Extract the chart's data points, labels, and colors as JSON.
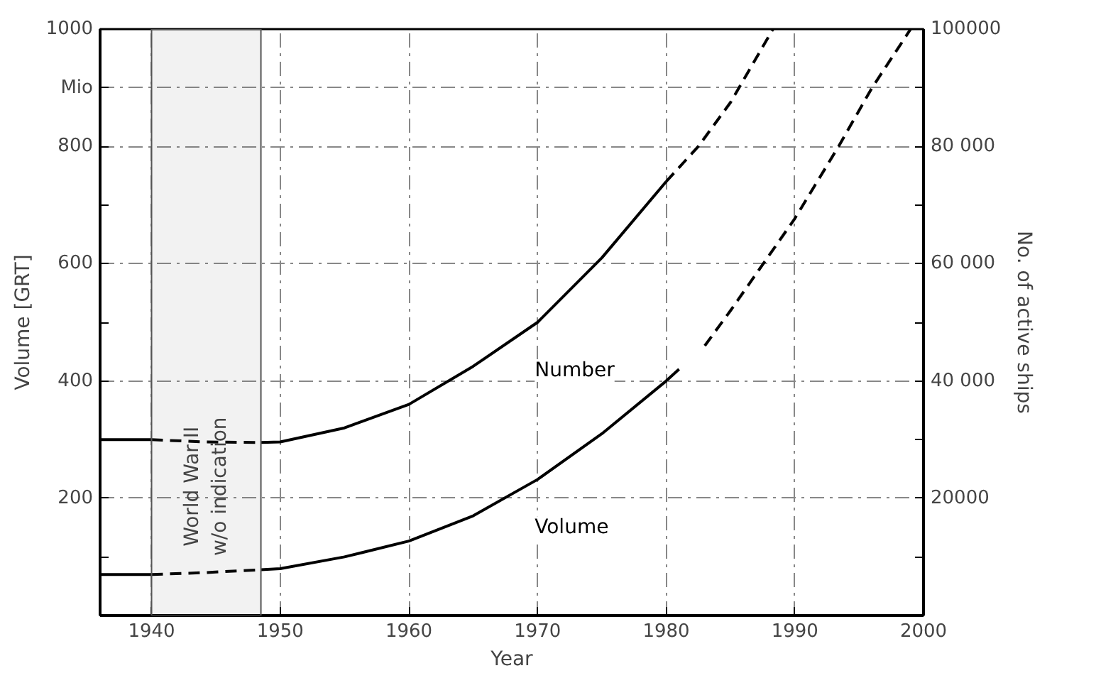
{
  "chart_data": {
    "type": "line",
    "xlabel": "Year",
    "ylabel": "Volume [GRT]",
    "y2label": "No. of active ships",
    "xlim": [
      1936,
      2000
    ],
    "xticks": [
      1940,
      1950,
      1960,
      1970,
      1980,
      1990,
      2000
    ],
    "ylim": [
      0,
      1000
    ],
    "yticks": [
      {
        "value": 100,
        "label": null
      },
      200,
      {
        "value": 300,
        "label": null
      },
      400,
      {
        "value": 500,
        "label": null
      },
      600,
      {
        "value": 700,
        "label": null
      },
      800,
      {
        "value": 900,
        "label": "Mio"
      },
      1000
    ],
    "y2lim": [
      0,
      100000
    ],
    "y2ticks": [
      {
        "value": 10000,
        "label": null
      },
      {
        "value": 20000,
        "label": "20000"
      },
      {
        "value": 30000,
        "label": null
      },
      {
        "value": 40000,
        "label": "40 000"
      },
      {
        "value": 50000,
        "label": null
      },
      {
        "value": 60000,
        "label": "60 000"
      },
      {
        "value": 70000,
        "label": null
      },
      {
        "value": 80000,
        "label": "80 000"
      },
      {
        "value": 90000,
        "label": null
      },
      {
        "value": 100000,
        "label": "100000"
      }
    ],
    "grid": true,
    "marker": "none",
    "bands": [
      {
        "axis": "x",
        "from": 1940,
        "to": 1948.5,
        "label": "World War II\nw/o indication",
        "color": "#555555"
      }
    ],
    "series": [
      {
        "color": "#000000",
        "axis": "y2",
        "line_style": "solid",
        "x": [
          1936,
          1940
        ],
        "values": [
          30000,
          30000
        ]
      },
      {
        "color": "#000000",
        "axis": "y2",
        "line_style": "dashed",
        "x": [
          1940,
          1944,
          1948.5
        ],
        "values": [
          30000,
          29600,
          29500
        ]
      },
      {
        "name": "Number",
        "color": "#000000",
        "axis": "y2",
        "line_style": "solid",
        "x": [
          1948.5,
          1950,
          1955,
          1960,
          1965,
          1970,
          1975,
          1980
        ],
        "values": [
          29500,
          29600,
          32000,
          36000,
          42500,
          50000,
          61000,
          74000
        ]
      },
      {
        "color": "#000000",
        "axis": "y2",
        "line_style": "dashed",
        "x": [
          1980,
          1982.5,
          1985,
          1988.3
        ],
        "values": [
          74000,
          80000,
          87500,
          100000
        ]
      },
      {
        "color": "#000000",
        "line_style": "solid",
        "x": [
          1936,
          1940
        ],
        "values": [
          70,
          70
        ]
      },
      {
        "color": "#000000",
        "line_style": "dashed",
        "x": [
          1940,
          1944,
          1948.5
        ],
        "values": [
          70,
          73,
          78
        ]
      },
      {
        "name": "Volume",
        "color": "#000000",
        "line_style": "solid",
        "x": [
          1948.5,
          1950,
          1955,
          1960,
          1965,
          1970,
          1975,
          1980,
          1981
        ],
        "values": [
          78,
          80,
          100,
          127,
          170,
          232,
          310,
          400,
          420
        ]
      },
      {
        "color": "#000000",
        "line_style": "dashed",
        "x": [
          1983,
          1985,
          1990,
          1993.4,
          1996,
          1999
        ],
        "values": [
          460,
          520,
          677,
          800,
          900,
          1000
        ]
      }
    ]
  }
}
